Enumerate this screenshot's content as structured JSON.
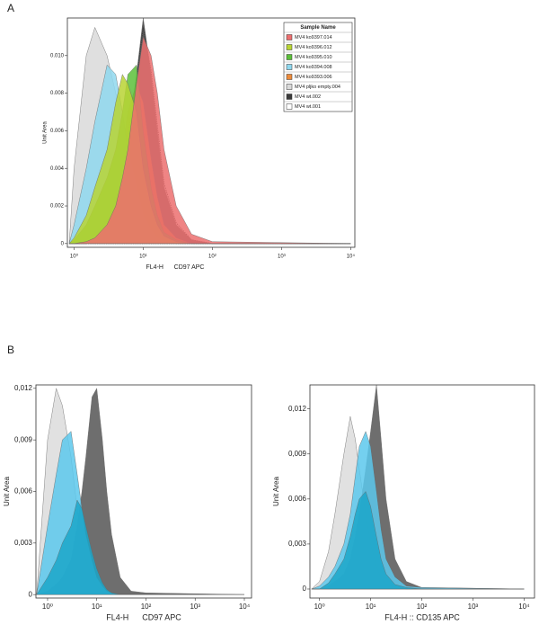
{
  "chart_data": [
    {
      "type": "area",
      "panel": "A",
      "xlabel": "FL4-H      CD97 APC",
      "ylabel": "Unit Area",
      "log_x": true,
      "xlim": [
        0.8,
        11500
      ],
      "ylim": [
        -0.0002,
        0.012
      ],
      "xticks": [
        {
          "value": 1,
          "label": "10⁰"
        },
        {
          "value": 10,
          "label": "10¹"
        },
        {
          "value": 100,
          "label": "10²"
        },
        {
          "value": 1000,
          "label": "10³"
        },
        {
          "value": 10000,
          "label": "10⁴"
        }
      ],
      "yticks": [
        0,
        0.002,
        0.004,
        0.006,
        0.008,
        {
          "value": 0.01,
          "label": "0.010"
        }
      ],
      "legend_title": "Sample Name",
      "legend": "top-right",
      "x": [
        0.85,
        1,
        1.5,
        2,
        3,
        4,
        5,
        6,
        8,
        10,
        13,
        16,
        20,
        30,
        50,
        100,
        10000
      ],
      "series": [
        {
          "name": "MV4 ko9397.014",
          "color": "#ec6e6e",
          "values": [
            0,
            0,
            0.0001,
            0.0003,
            0.001,
            0.002,
            0.0035,
            0.005,
            0.0085,
            0.011,
            0.01,
            0.008,
            0.005,
            0.002,
            0.0005,
            0.0001,
            0
          ]
        },
        {
          "name": "MV4 ko9396.012",
          "color": "#b8d434",
          "values": [
            0,
            0.0003,
            0.0015,
            0.003,
            0.005,
            0.0075,
            0.009,
            0.0085,
            0.007,
            0.004,
            0.002,
            0.001,
            0.0004,
            0.0001,
            0,
            0,
            0
          ]
        },
        {
          "name": "MV4 ko9395.010",
          "color": "#5cbf3a",
          "values": [
            0,
            0.0002,
            0.001,
            0.002,
            0.0035,
            0.005,
            0.007,
            0.009,
            0.0095,
            0.006,
            0.003,
            0.0015,
            0.0006,
            0.0002,
            0,
            0,
            0
          ]
        },
        {
          "name": "MV4 ko9394.008",
          "color": "#8fd8ee",
          "values": [
            0,
            0.001,
            0.004,
            0.0065,
            0.0095,
            0.009,
            0.007,
            0.005,
            0.003,
            0.0015,
            0.0007,
            0.0003,
            0.0001,
            0,
            0,
            0,
            0
          ]
        },
        {
          "name": "MV4 ko9393.006",
          "color": "#ec8a3a",
          "values": [
            0,
            0,
            0.0003,
            0.0008,
            0.002,
            0.0035,
            0.005,
            0.007,
            0.0085,
            0.0075,
            0.0045,
            0.0025,
            0.001,
            0.0003,
            0,
            0,
            0
          ]
        },
        {
          "name": "MV4 pljko empty.004",
          "color": "#d9d9d9",
          "values": [
            0,
            0.004,
            0.01,
            0.0115,
            0.01,
            0.008,
            0.006,
            0.004,
            0.002,
            0.001,
            0.0004,
            0.0002,
            0.0001,
            0,
            0,
            0,
            0
          ]
        },
        {
          "name": "MV4 wt.002",
          "color": "#3a3a3a",
          "values": [
            0,
            0,
            0,
            0.0002,
            0.0008,
            0.002,
            0.0035,
            0.0055,
            0.009,
            0.012,
            0.009,
            0.006,
            0.003,
            0.001,
            0.0002,
            0,
            0
          ]
        },
        {
          "name": "MV4 wt.001",
          "color": "#ffffff",
          "values": [
            0,
            0,
            0,
            0.0002,
            0.0009,
            0.0022,
            0.0038,
            0.0058,
            0.0088,
            0.0115,
            0.0092,
            0.0063,
            0.0032,
            0.0011,
            0.0002,
            0,
            0
          ]
        }
      ]
    },
    {
      "type": "area",
      "panel": "B",
      "xlabel": "FL4-H      CD97 APC",
      "ylabel": "Unit Area",
      "log_x": true,
      "xlim": [
        0.58,
        14000
      ],
      "ylim": [
        -0.0002,
        0.0122
      ],
      "xticks": [
        {
          "value": 1,
          "label": "10⁰"
        },
        {
          "value": 10,
          "label": "10¹"
        },
        {
          "value": 100,
          "label": "10²"
        },
        {
          "value": 1000,
          "label": "10³"
        },
        {
          "value": 10000,
          "label": "10⁴"
        }
      ],
      "yticks": [
        0,
        {
          "value": 0.003,
          "label": "0,003"
        },
        {
          "value": 0.006,
          "label": "0,006"
        },
        {
          "value": 0.009,
          "label": "0,009"
        },
        {
          "value": 0.012,
          "label": "0,012"
        }
      ],
      "x": [
        0.6,
        1,
        1.5,
        2,
        3,
        4,
        5,
        6,
        8,
        10,
        13,
        16,
        20,
        30,
        50,
        100,
        10000
      ],
      "series": [
        {
          "color": "#1ba6c9",
          "values": [
            0,
            0.001,
            0.002,
            0.003,
            0.004,
            0.0055,
            0.005,
            0.004,
            0.0025,
            0.0015,
            0.0007,
            0.0003,
            0.0001,
            0,
            0,
            0,
            0
          ]
        },
        {
          "color": "#5cc8ec",
          "values": [
            0,
            0.004,
            0.007,
            0.009,
            0.0095,
            0.007,
            0.005,
            0.0035,
            0.002,
            0.001,
            0.0005,
            0.0002,
            0.0001,
            0,
            0,
            0,
            0
          ]
        },
        {
          "color": "#555555",
          "values": [
            0,
            0.0002,
            0.0006,
            0.001,
            0.002,
            0.004,
            0.006,
            0.008,
            0.0115,
            0.012,
            0.009,
            0.006,
            0.0035,
            0.001,
            0.0002,
            0.0001,
            0
          ]
        },
        {
          "color": "#dcdcdc",
          "values": [
            0,
            0.009,
            0.012,
            0.011,
            0.008,
            0.005,
            0.003,
            0.002,
            0.001,
            0.0005,
            0.0002,
            0.0001,
            0,
            0,
            0,
            0,
            0
          ]
        }
      ]
    },
    {
      "type": "area",
      "xlabel": "FL4-H :: CD135 APC",
      "ylabel": "Unit Area",
      "log_x": true,
      "xlim": [
        0.65,
        16000
      ],
      "ylim": [
        -0.0006,
        0.0136
      ],
      "xticks": [
        {
          "value": 1,
          "label": "10⁰"
        },
        {
          "value": 10,
          "label": "10¹"
        },
        {
          "value": 100,
          "label": "10²"
        },
        {
          "value": 1000,
          "label": "10³"
        },
        {
          "value": 10000,
          "label": "10⁴"
        }
      ],
      "yticks": [
        0,
        {
          "value": 0.003,
          "label": "0,003"
        },
        {
          "value": 0.006,
          "label": "0,006"
        },
        {
          "value": 0.009,
          "label": "0,009"
        },
        {
          "value": 0.012,
          "label": "0,012"
        }
      ],
      "x": [
        0.7,
        1,
        1.5,
        2,
        3,
        4,
        5,
        6,
        8,
        10,
        13,
        16,
        20,
        30,
        50,
        100,
        10000
      ],
      "series": [
        {
          "color": "#1ba6c9",
          "values": [
            0,
            0,
            0.0004,
            0.001,
            0.002,
            0.0035,
            0.005,
            0.006,
            0.0065,
            0.0055,
            0.0035,
            0.002,
            0.001,
            0.0003,
            0.0001,
            0,
            0
          ]
        },
        {
          "color": "#5cc8ec",
          "values": [
            0,
            0.0002,
            0.0008,
            0.0015,
            0.003,
            0.005,
            0.0075,
            0.0095,
            0.0105,
            0.0095,
            0.0065,
            0.004,
            0.002,
            0.0008,
            0.0002,
            0.0001,
            0
          ]
        },
        {
          "color": "#555555",
          "values": [
            0,
            0,
            0.0002,
            0.0005,
            0.001,
            0.002,
            0.0035,
            0.005,
            0.008,
            0.0105,
            0.0136,
            0.01,
            0.006,
            0.002,
            0.0005,
            0.0001,
            0
          ]
        },
        {
          "color": "#dcdcdc",
          "values": [
            0,
            0.0005,
            0.0025,
            0.005,
            0.009,
            0.0115,
            0.01,
            0.008,
            0.005,
            0.003,
            0.0015,
            0.0007,
            0.0003,
            0.0001,
            0,
            0,
            0
          ]
        }
      ]
    }
  ]
}
